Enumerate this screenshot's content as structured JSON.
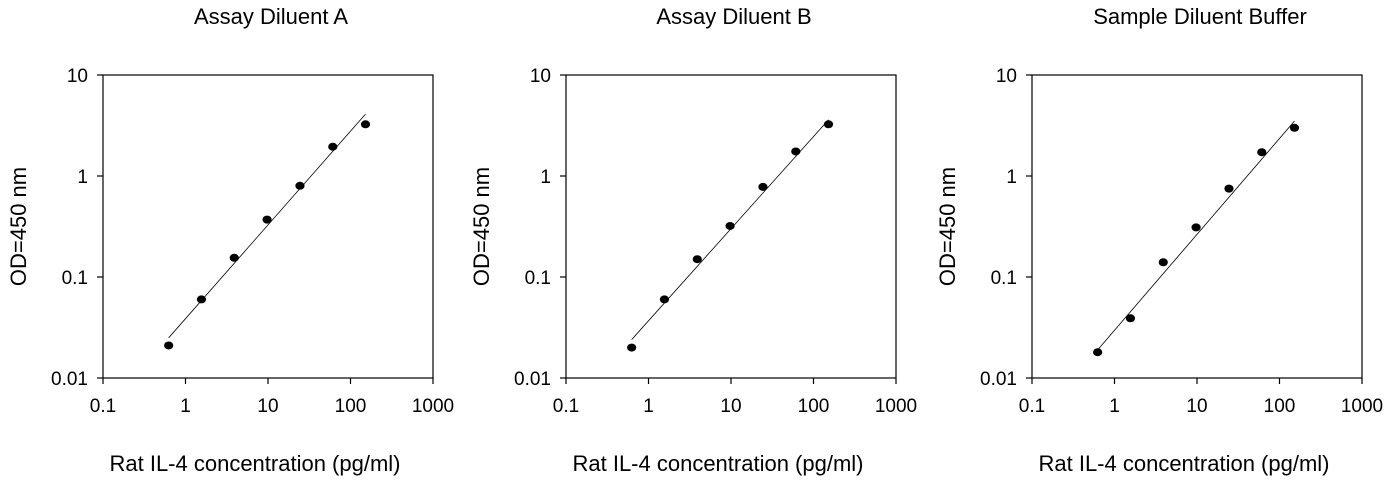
{
  "chart_data": [
    {
      "type": "scatter",
      "title": "Assay Diluent A",
      "xlabel": "Rat IL-4 concentration (pg/ml)",
      "ylabel": "OD=450 nm",
      "xscale": "log",
      "yscale": "log",
      "xlim": [
        0.1,
        1000
      ],
      "ylim": [
        0.01,
        10
      ],
      "xticks": [
        "0.1",
        "1",
        "10",
        "100",
        "1000"
      ],
      "yticks": [
        "0.01",
        "0.1",
        "1",
        "10"
      ],
      "grid": false,
      "points": {
        "x": [
          0.625,
          1.56,
          3.9,
          9.75,
          24.4,
          61,
          152
        ],
        "y": [
          0.021,
          0.06,
          0.155,
          0.37,
          0.8,
          1.95,
          3.25
        ]
      },
      "fit_line": {
        "x": [
          0.625,
          152
        ],
        "y": [
          0.025,
          4.1
        ]
      }
    },
    {
      "type": "scatter",
      "title": "Assay Diluent B",
      "xlabel": "Rat IL-4 concentration (pg/ml)",
      "ylabel": "OD=450 nm",
      "xscale": "log",
      "yscale": "log",
      "xlim": [
        0.1,
        1000
      ],
      "ylim": [
        0.01,
        10
      ],
      "xticks": [
        "0.1",
        "1",
        "10",
        "100",
        "1000"
      ],
      "yticks": [
        "0.01",
        "0.1",
        "1",
        "10"
      ],
      "grid": false,
      "points": {
        "x": [
          0.625,
          1.56,
          3.9,
          9.75,
          24.4,
          61,
          152
        ],
        "y": [
          0.02,
          0.06,
          0.15,
          0.32,
          0.78,
          1.75,
          3.25
        ]
      },
      "fit_line": {
        "x": [
          0.625,
          152
        ],
        "y": [
          0.024,
          3.6
        ]
      }
    },
    {
      "type": "scatter",
      "title": "Sample Diluent Buffer",
      "xlabel": "Rat IL-4 concentration (pg/ml)",
      "ylabel": "OD=450 nm",
      "xscale": "log",
      "yscale": "log",
      "xlim": [
        0.1,
        1000
      ],
      "ylim": [
        0.01,
        10
      ],
      "xticks": [
        "0.1",
        "1",
        "10",
        "100",
        "1000"
      ],
      "yticks": [
        "0.01",
        "0.1",
        "1",
        "10"
      ],
      "grid": false,
      "points": {
        "x": [
          0.625,
          1.56,
          3.9,
          9.75,
          24.4,
          61,
          152
        ],
        "y": [
          0.018,
          0.039,
          0.14,
          0.31,
          0.75,
          1.72,
          3.0
        ]
      },
      "fit_line": {
        "x": [
          0.625,
          152
        ],
        "y": [
          0.019,
          3.5
        ]
      }
    }
  ]
}
